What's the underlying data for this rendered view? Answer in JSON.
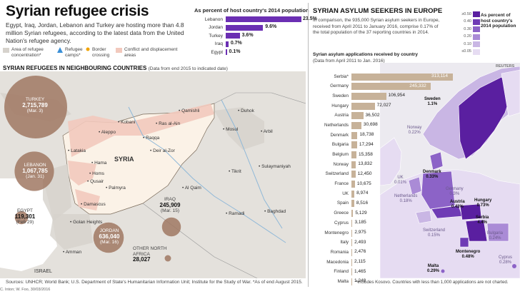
{
  "header": {
    "title": "Syrian refugee crisis",
    "intro": "Egypt, Iraq, Jordan, Lebanon and Turkey are hosting more than 4.8 million Syrian refugees, according to the latest data from the United Nation's refugee agency."
  },
  "host_share": {
    "title": "As percent of host country's 2014 population",
    "rows": [
      {
        "country": "Lebanon",
        "value": 23.5,
        "label": "23.5%"
      },
      {
        "country": "Jordan",
        "value": 9.6,
        "label": "9.6%"
      },
      {
        "country": "Turkey",
        "value": 3.6,
        "label": "3.6%"
      },
      {
        "country": "Iraq",
        "value": 0.7,
        "label": "0.7%"
      },
      {
        "country": "Egypt",
        "value": 0.1,
        "label": "0.1%"
      }
    ]
  },
  "legend": {
    "items": [
      {
        "label": "Area of refugee concentration*",
        "color": "#d6d2cc"
      },
      {
        "label": "Refugee camps*",
        "color": "#3a8fd6"
      },
      {
        "label": "Border crossing",
        "color": "#f0a300"
      },
      {
        "label": "Conflict and displacement areas",
        "color": "#f2c9bd"
      }
    ]
  },
  "neighbours": {
    "heading": "SYRIAN REFUGEES IN NEIGHBOURING COUNTRIES",
    "subheading": "(Data from end 2015 to indicated date)",
    "countries": [
      {
        "name": "TURKEY",
        "value": "2,715,789",
        "date": "(Mar. 3)",
        "color": "#a07863"
      },
      {
        "name": "LEBANON",
        "value": "1,067,785",
        "date": "(Jan. 31)",
        "color": "#a07863"
      },
      {
        "name": "JORDAN",
        "value": "636,040",
        "date": "(Mar. 16)",
        "color": "#a07863"
      },
      {
        "name": "IRAQ",
        "value": "245,909",
        "date": "(Mar. 15)",
        "color": "#a07863"
      },
      {
        "name": "EGYPT",
        "value": "119,301",
        "date": "(Feb 29)",
        "color": "#a07863"
      },
      {
        "name": "OTHER NORTH AFRICA",
        "value": "28,027",
        "date": "",
        "color": "#a07863"
      }
    ],
    "cities": [
      "Aleppo",
      "Kobani",
      "Ras al-Ain",
      "Qamishli",
      "Raqqa",
      "Latakia",
      "Deir al-Zor",
      "Hama",
      "Homs",
      "Qusair",
      "Palmyra",
      "Damascus",
      "Golan Heights",
      "Amman",
      "Mosul",
      "Duhok",
      "Arbil",
      "Sulaymaniyah",
      "Tikrit",
      "Al Qaim",
      "Ramadi",
      "Baghdad"
    ],
    "country_label": "SYRIA",
    "israel": "ISRAEL"
  },
  "source": "Sources: UNHCR; World Bank; U.S. Department of State's Humanitarian Information Unit; Institute for the Study of War.  *As of end August 2015.",
  "credit": "C. Inton; W. Foo, 30/03/2016",
  "europe": {
    "title": "SYRIAN ASYLUM SEEKERS IN EUROPE",
    "intro": "In comparison, the 935,000 Syrian asylum seekers in Europe, received from April 2011 to January 2016, comprise 0.17% of the total population of the 37 reporting countries in 2014.",
    "apps_title": "Syrian asylum applications received by country",
    "apps_sub": "(Data from April 2011 to Jan. 2016)",
    "footnote": "*Includes Kosovo.  Countries with less than 1,000 applications are not charted.",
    "logo": "REUTERS"
  },
  "chart_data": {
    "type": "bar",
    "title": "Syrian asylum applications received by country",
    "categories": [
      "Serbia*",
      "Germany",
      "Sweden",
      "Hungary",
      "Austria",
      "Netherlands",
      "Denmark",
      "Bulgaria",
      "Belgium",
      "Norway",
      "Switzerland",
      "France",
      "UK",
      "Spain",
      "Greece",
      "Cyprus",
      "Montenegro",
      "Italy",
      "Romania",
      "Macedonia",
      "Finland",
      "Malta"
    ],
    "values": [
      313114,
      245332,
      106954,
      72027,
      36502,
      30698,
      18738,
      17294,
      15358,
      13832,
      12450,
      10675,
      8974,
      8516,
      5129,
      3185,
      2975,
      2493,
      2476,
      2115,
      1465,
      1248
    ],
    "labels": [
      "313,114",
      "245,332",
      "106,954",
      "72,027",
      "36,502",
      "30,698",
      "18,738",
      "17,294",
      "15,358",
      "13,832",
      "12,450",
      "10,675",
      "8,974",
      "8,516",
      "5,129",
      "3,185",
      "2,975",
      "2,493",
      "2,476",
      "2,115",
      "1,465",
      "1,248"
    ]
  },
  "eu_scale": {
    "title": "As percent of host country's 2014 population",
    "levels": [
      "≥0.50",
      "0.40",
      "0.30",
      "0.20",
      "0.10",
      "≤0.05"
    ],
    "colors": [
      "#5a1fa0",
      "#6f3bb5",
      "#8c63c7",
      "#aa8bd6",
      "#c9b6e4",
      "#e6dcf2"
    ]
  },
  "eu_labels": [
    {
      "name": "Sweden",
      "value": "1.1%",
      "bold": true
    },
    {
      "name": "Norway",
      "value": "0.22%",
      "bold": false
    },
    {
      "name": "Denmark",
      "value": "0.33%",
      "bold": true
    },
    {
      "name": "UK",
      "value": "0.01%",
      "bold": false
    },
    {
      "name": "Netherlands",
      "value": "0.18%",
      "bold": false
    },
    {
      "name": "Germany",
      "value": "0.3%",
      "bold": false
    },
    {
      "name": "Austria",
      "value": "0.43%",
      "bold": true
    },
    {
      "name": "Hungary",
      "value": "0.73%",
      "bold": true
    },
    {
      "name": "Switzerland",
      "value": "0.15%",
      "bold": false
    },
    {
      "name": "Serbia",
      "value": "4.4%",
      "bold": true
    },
    {
      "name": "Bulgaria",
      "value": "0.24%",
      "bold": false
    },
    {
      "name": "Montenegro",
      "value": "0.48%",
      "bold": true
    },
    {
      "name": "Malta",
      "value": "0.29%",
      "bold": true
    },
    {
      "name": "Cyprus",
      "value": "0.28%",
      "bold": false
    }
  ]
}
